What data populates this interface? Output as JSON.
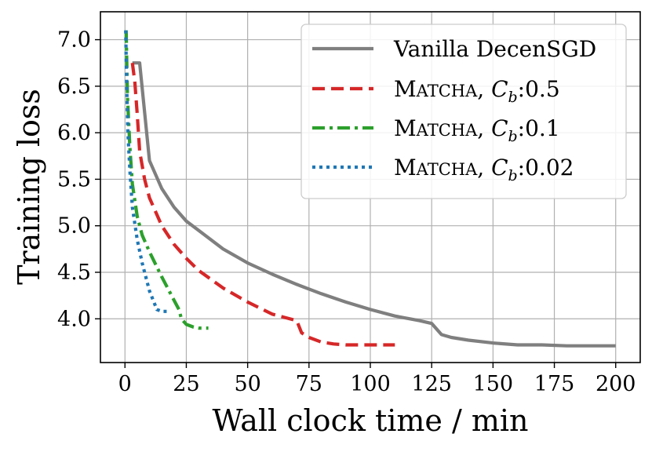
{
  "chart_data": {
    "type": "line",
    "title": "",
    "xlabel": "Wall clock time / min",
    "ylabel": "Training loss",
    "xlim": [
      -10,
      210
    ],
    "ylim": [
      3.53,
      7.3
    ],
    "xticks": [
      0,
      25,
      50,
      75,
      100,
      125,
      150,
      175,
      200
    ],
    "xtick_labels": [
      "0",
      "25",
      "50",
      "75",
      "100",
      "125",
      "150",
      "175",
      "200"
    ],
    "yticks": [
      4.0,
      4.5,
      5.0,
      5.5,
      6.0,
      6.5,
      7.0
    ],
    "ytick_labels": [
      "4.0",
      "4.5",
      "5.0",
      "5.5",
      "6.0",
      "6.5",
      "7.0"
    ],
    "grid": true,
    "legend_position": "top-right",
    "series": [
      {
        "name": "Vanilla DecenSGD",
        "color": "#7f7f7f",
        "style": "solid",
        "x": [
          3,
          6,
          10,
          15,
          20,
          25,
          30,
          40,
          50,
          60,
          70,
          80,
          90,
          100,
          110,
          120,
          125,
          129,
          133,
          140,
          150,
          160,
          170,
          180,
          190,
          200
        ],
        "y": [
          6.75,
          6.75,
          5.7,
          5.4,
          5.2,
          5.05,
          4.95,
          4.75,
          4.6,
          4.48,
          4.37,
          4.27,
          4.18,
          4.1,
          4.03,
          3.98,
          3.95,
          3.83,
          3.8,
          3.77,
          3.74,
          3.72,
          3.72,
          3.71,
          3.71,
          3.71
        ]
      },
      {
        "name": "MATCHA, Cb:0.5",
        "color": "#d62728",
        "style": "dashed",
        "x": [
          3,
          4,
          5,
          6,
          8,
          10,
          15,
          20,
          25,
          30,
          40,
          50,
          60,
          70,
          72,
          75,
          80,
          85,
          90,
          100,
          110
        ],
        "y": [
          6.75,
          6.55,
          6.2,
          5.8,
          5.5,
          5.3,
          5.0,
          4.8,
          4.65,
          4.52,
          4.33,
          4.18,
          4.05,
          3.98,
          3.85,
          3.8,
          3.75,
          3.73,
          3.72,
          3.72,
          3.72
        ]
      },
      {
        "name": "MATCHA, Cb:0.1",
        "color": "#2ca02c",
        "style": "dashdot",
        "x": [
          0.5,
          1,
          2,
          3,
          5,
          7,
          10,
          15,
          20,
          22,
          23,
          25,
          28,
          30,
          34
        ],
        "y": [
          7.1,
          6.4,
          5.85,
          5.45,
          5.1,
          4.9,
          4.72,
          4.45,
          4.2,
          4.1,
          4.0,
          3.94,
          3.91,
          3.9,
          3.9
        ]
      },
      {
        "name": "MATCHA, Cb:0.02",
        "color": "#1f77b4",
        "style": "dotted",
        "x": [
          0.3,
          0.7,
          1.2,
          2,
          3,
          5,
          7,
          10,
          13,
          15,
          18
        ],
        "y": [
          7.1,
          6.5,
          6.0,
          5.6,
          5.2,
          4.85,
          4.6,
          4.3,
          4.1,
          4.08,
          4.08
        ]
      }
    ]
  },
  "legend": [
    {
      "sc": "Matcha",
      "suffix": ", ",
      "italic": "C",
      "sub": "b",
      "after": ":0.5"
    },
    {
      "sc": "Matcha",
      "suffix": ", ",
      "italic": "C",
      "sub": "b",
      "after": ":0.1"
    },
    {
      "sc": "Matcha",
      "suffix": ", ",
      "italic": "C",
      "sub": "b",
      "after": ":0.02"
    }
  ]
}
